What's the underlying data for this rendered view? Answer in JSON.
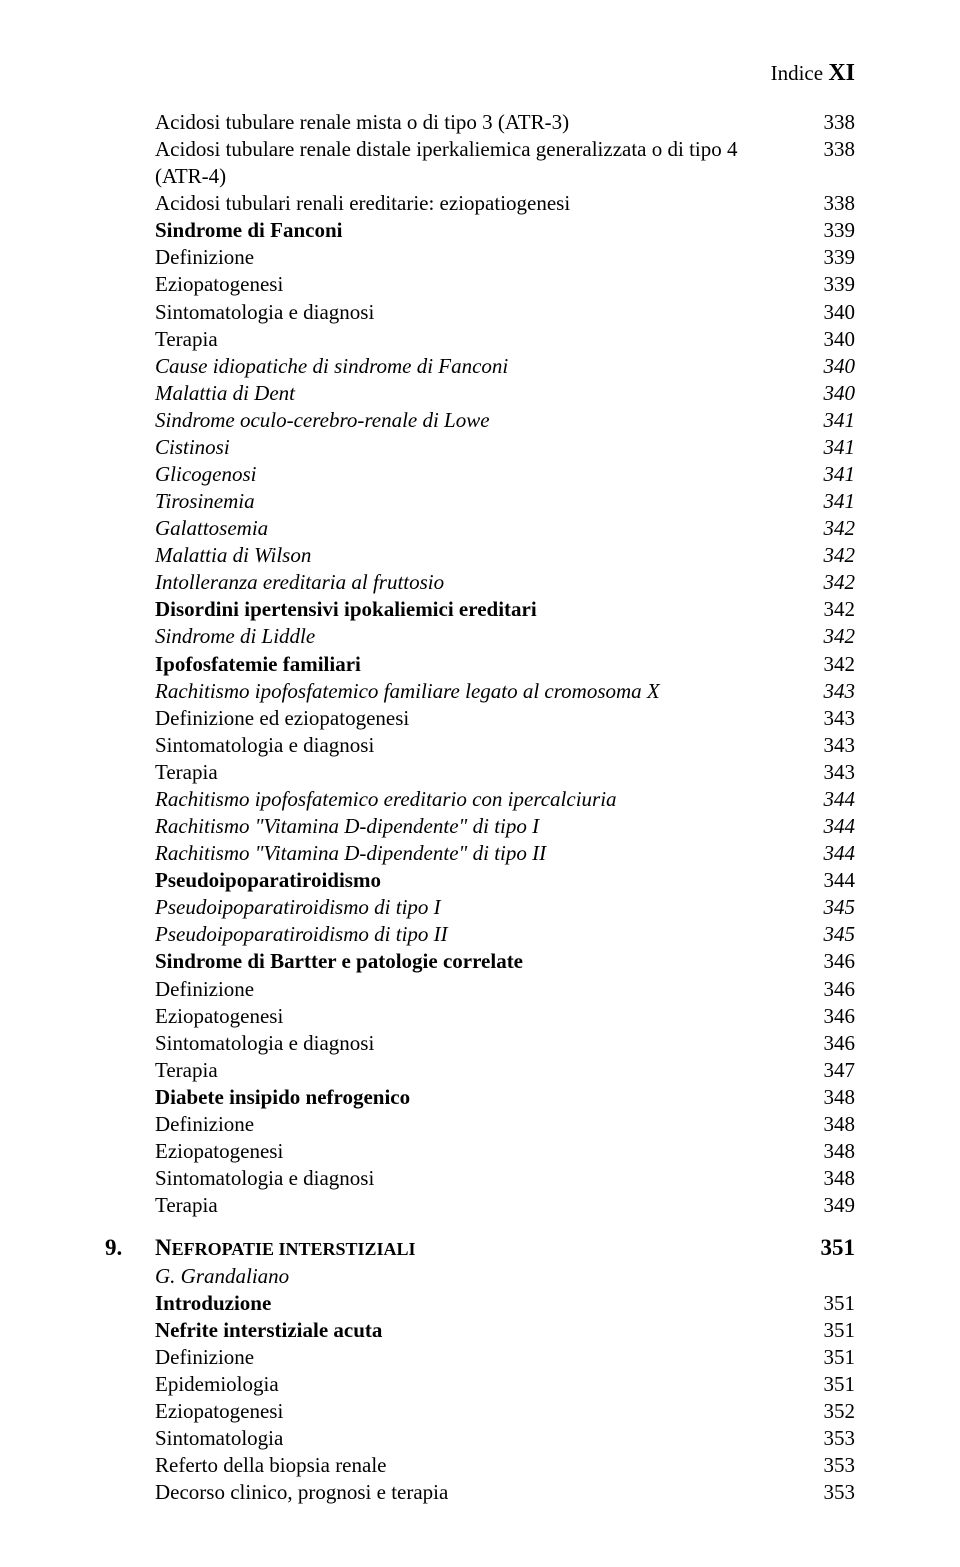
{
  "header": {
    "label": "Indice ",
    "pagenum": "XI"
  },
  "entries": [
    {
      "title": "Acidosi tubulare renale mista o di tipo 3 (ATR-3)",
      "page": "338",
      "style": "normal"
    },
    {
      "title": "Acidosi tubulare renale distale iperkaliemica generalizzata o di tipo 4 (ATR-4)",
      "page": "338",
      "style": "normal"
    },
    {
      "title": "Acidosi tubulari renali ereditarie: eziopatiogenesi",
      "page": "338",
      "style": "normal"
    },
    {
      "title": "Sindrome di Fanconi",
      "page": "339",
      "style": "bold"
    },
    {
      "title": "Definizione",
      "page": "339",
      "style": "normal"
    },
    {
      "title": "Eziopatogenesi",
      "page": "339",
      "style": "normal"
    },
    {
      "title": "Sintomatologia e diagnosi",
      "page": "340",
      "style": "normal"
    },
    {
      "title": "Terapia",
      "page": "340",
      "style": "normal"
    },
    {
      "title": "Cause idiopatiche di sindrome di Fanconi",
      "page": "340",
      "style": "italic"
    },
    {
      "title": "Malattia di Dent",
      "page": "340",
      "style": "italic"
    },
    {
      "title": "Sindrome oculo-cerebro-renale di Lowe",
      "page": "341",
      "style": "italic"
    },
    {
      "title": "Cistinosi",
      "page": "341",
      "style": "italic"
    },
    {
      "title": "Glicogenosi",
      "page": "341",
      "style": "italic"
    },
    {
      "title": "Tirosinemia",
      "page": "341",
      "style": "italic"
    },
    {
      "title": "Galattosemia",
      "page": "342",
      "style": "italic"
    },
    {
      "title": "Malattia di Wilson",
      "page": "342",
      "style": "italic"
    },
    {
      "title": "Intolleranza ereditaria al fruttosio",
      "page": "342",
      "style": "italic"
    },
    {
      "title": "Disordini ipertensivi ipokaliemici ereditari",
      "page": "342",
      "style": "bold"
    },
    {
      "title": "Sindrome di Liddle",
      "page": "342",
      "style": "italic"
    },
    {
      "title": "Ipofosfatemie familiari",
      "page": "342",
      "style": "bold"
    },
    {
      "title": "Rachitismo ipofosfatemico familiare legato al cromosoma X",
      "page": "343",
      "style": "italic"
    },
    {
      "title": "Definizione ed eziopatogenesi",
      "page": "343",
      "style": "normal"
    },
    {
      "title": "Sintomatologia e diagnosi",
      "page": "343",
      "style": "normal"
    },
    {
      "title": "Terapia",
      "page": "343",
      "style": "normal"
    },
    {
      "title": "Rachitismo ipofosfatemico ereditario con ipercalciuria",
      "page": "344",
      "style": "italic"
    },
    {
      "title": "Rachitismo \"Vitamina D-dipendente\" di tipo I",
      "page": "344",
      "style": "italic"
    },
    {
      "title": "Rachitismo \"Vitamina D-dipendente\" di tipo II",
      "page": "344",
      "style": "italic"
    },
    {
      "title": "Pseudoipoparatiroidismo",
      "page": "344",
      "style": "bold"
    },
    {
      "title": "Pseudoipoparatiroidismo di tipo I",
      "page": "345",
      "style": "italic"
    },
    {
      "title": "Pseudoipoparatiroidismo di tipo II",
      "page": "345",
      "style": "italic"
    },
    {
      "title": "Sindrome di Bartter e patologie correlate",
      "page": "346",
      "style": "bold"
    },
    {
      "title": "Definizione",
      "page": "346",
      "style": "normal"
    },
    {
      "title": "Eziopatogenesi",
      "page": "346",
      "style": "normal"
    },
    {
      "title": "Sintomatologia e diagnosi",
      "page": "346",
      "style": "normal"
    },
    {
      "title": "Terapia",
      "page": "347",
      "style": "normal"
    },
    {
      "title": "Diabete insipido nefrogenico",
      "page": "348",
      "style": "bold"
    },
    {
      "title": "Definizione",
      "page": "348",
      "style": "normal"
    },
    {
      "title": "Eziopatogenesi",
      "page": "348",
      "style": "normal"
    },
    {
      "title": "Sintomatologia e diagnosi",
      "page": "348",
      "style": "normal"
    },
    {
      "title": "Terapia",
      "page": "349",
      "style": "normal"
    }
  ],
  "chapter": {
    "num": "9.",
    "title_first": "N",
    "title_rest": "EFROPATIE INTERSTIZIALI",
    "page": "351",
    "author": "G. Grandaliano",
    "items": [
      {
        "title": "Introduzione",
        "page": "351",
        "style": "bold"
      },
      {
        "title": "Nefrite interstiziale acuta",
        "page": "351",
        "style": "bold"
      },
      {
        "title": "Definizione",
        "page": "351",
        "style": "normal"
      },
      {
        "title": "Epidemiologia",
        "page": "351",
        "style": "normal"
      },
      {
        "title": "Eziopatogenesi",
        "page": "352",
        "style": "normal"
      },
      {
        "title": "Sintomatologia",
        "page": "353",
        "style": "normal"
      },
      {
        "title": "Referto della biopsia renale",
        "page": "353",
        "style": "normal"
      },
      {
        "title": "Decorso clinico, prognosi e terapia",
        "page": "353",
        "style": "normal"
      }
    ]
  }
}
